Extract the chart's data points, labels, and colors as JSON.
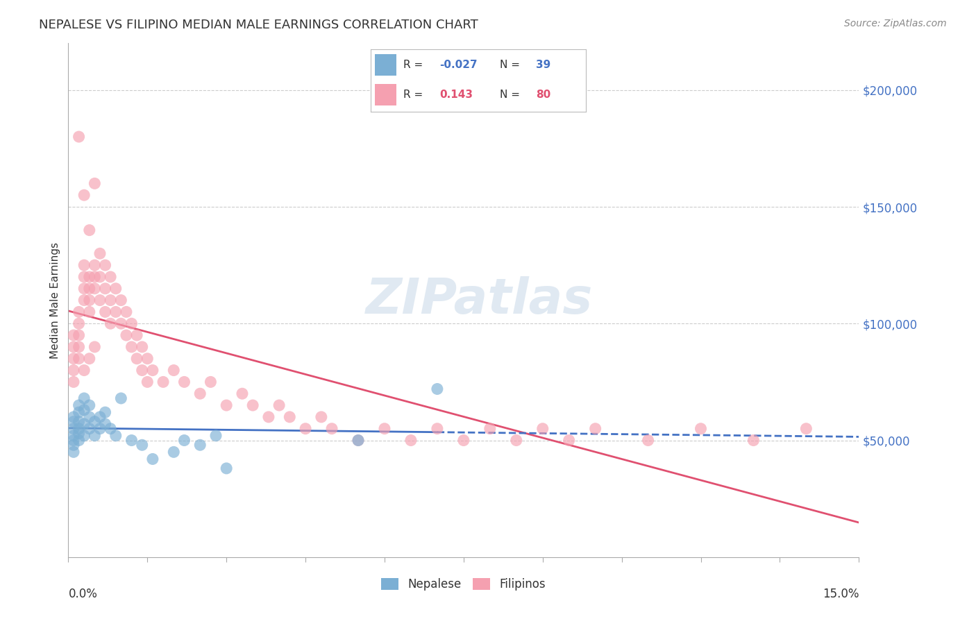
{
  "title": "NEPALESE VS FILIPINO MEDIAN MALE EARNINGS CORRELATION CHART",
  "source": "Source: ZipAtlas.com",
  "ylabel": "Median Male Earnings",
  "nepalese_R": -0.027,
  "nepalese_N": 39,
  "filipino_R": 0.143,
  "filipino_N": 80,
  "xlim": [
    0.0,
    0.15
  ],
  "ylim": [
    0,
    220000
  ],
  "yticks": [
    50000,
    100000,
    150000,
    200000
  ],
  "ytick_labels": [
    "$50,000",
    "$100,000",
    "$150,000",
    "$200,000"
  ],
  "blue_color": "#7BAFD4",
  "pink_color": "#F5A0B0",
  "blue_line_color": "#4472C4",
  "pink_line_color": "#E05070",
  "watermark": "ZIPatlas",
  "nepalese_x": [
    0.001,
    0.001,
    0.001,
    0.001,
    0.001,
    0.001,
    0.001,
    0.002,
    0.002,
    0.002,
    0.002,
    0.002,
    0.002,
    0.003,
    0.003,
    0.003,
    0.003,
    0.004,
    0.004,
    0.004,
    0.005,
    0.005,
    0.006,
    0.006,
    0.007,
    0.007,
    0.008,
    0.009,
    0.01,
    0.012,
    0.014,
    0.016,
    0.02,
    0.022,
    0.025,
    0.028,
    0.03,
    0.055,
    0.07
  ],
  "nepalese_y": [
    58000,
    55000,
    50000,
    48000,
    45000,
    52000,
    60000,
    62000,
    58000,
    55000,
    50000,
    65000,
    53000,
    68000,
    63000,
    57000,
    52000,
    65000,
    60000,
    55000,
    58000,
    52000,
    60000,
    55000,
    62000,
    57000,
    55000,
    52000,
    68000,
    50000,
    48000,
    42000,
    45000,
    50000,
    48000,
    52000,
    38000,
    50000,
    72000
  ],
  "filipino_x": [
    0.001,
    0.001,
    0.001,
    0.001,
    0.001,
    0.002,
    0.002,
    0.002,
    0.002,
    0.002,
    0.003,
    0.003,
    0.003,
    0.003,
    0.003,
    0.004,
    0.004,
    0.004,
    0.004,
    0.004,
    0.005,
    0.005,
    0.005,
    0.005,
    0.006,
    0.006,
    0.006,
    0.007,
    0.007,
    0.007,
    0.008,
    0.008,
    0.008,
    0.009,
    0.009,
    0.01,
    0.01,
    0.011,
    0.011,
    0.012,
    0.012,
    0.013,
    0.013,
    0.014,
    0.014,
    0.015,
    0.015,
    0.016,
    0.018,
    0.02,
    0.022,
    0.025,
    0.027,
    0.03,
    0.033,
    0.035,
    0.038,
    0.04,
    0.042,
    0.045,
    0.048,
    0.05,
    0.055,
    0.06,
    0.065,
    0.07,
    0.075,
    0.08,
    0.085,
    0.09,
    0.095,
    0.1,
    0.11,
    0.12,
    0.13,
    0.14,
    0.002,
    0.003,
    0.004,
    0.005
  ],
  "filipino_y": [
    80000,
    85000,
    90000,
    95000,
    75000,
    100000,
    105000,
    95000,
    90000,
    85000,
    110000,
    115000,
    120000,
    125000,
    80000,
    105000,
    110000,
    115000,
    120000,
    85000,
    125000,
    120000,
    115000,
    90000,
    130000,
    120000,
    110000,
    125000,
    115000,
    105000,
    120000,
    110000,
    100000,
    115000,
    105000,
    110000,
    100000,
    105000,
    95000,
    100000,
    90000,
    95000,
    85000,
    90000,
    80000,
    85000,
    75000,
    80000,
    75000,
    80000,
    75000,
    70000,
    75000,
    65000,
    70000,
    65000,
    60000,
    65000,
    60000,
    55000,
    60000,
    55000,
    50000,
    55000,
    50000,
    55000,
    50000,
    55000,
    50000,
    55000,
    50000,
    55000,
    50000,
    55000,
    50000,
    55000,
    180000,
    155000,
    140000,
    160000
  ]
}
